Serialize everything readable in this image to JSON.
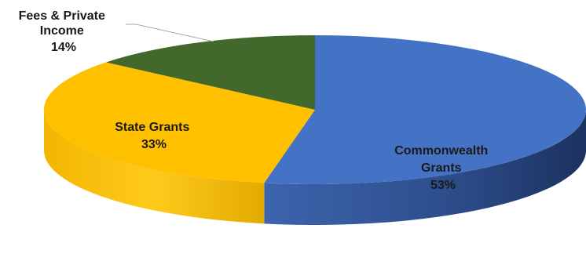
{
  "chart_data": {
    "type": "pie",
    "style": "3d",
    "slices": [
      {
        "name": "Commonwealth Grants",
        "value": 53,
        "label_lines": [
          "Commonwealth",
          "Grants"
        ],
        "pct_label": "53%",
        "color": "#4472C4"
      },
      {
        "name": "State Grants",
        "value": 33,
        "label_lines": [
          "State Grants"
        ],
        "pct_label": "33%",
        "color": "#FFC000"
      },
      {
        "name": "Fees & Private Income",
        "value": 14,
        "label_lines": [
          "Fees & Private",
          "Income"
        ],
        "pct_label": "14%",
        "color": "#43682B"
      }
    ],
    "legend": "none"
  }
}
